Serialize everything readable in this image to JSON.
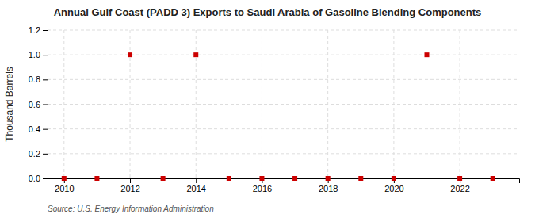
{
  "chart_data": {
    "type": "scatter",
    "title": "Annual Gulf Coast (PADD 3) Exports to Saudi Arabia of Gasoline Blending Components",
    "ylabel": "Thousand Barrels",
    "source": "Source: U.S. Energy Information Administration",
    "x": [
      2010,
      2011,
      2012,
      2013,
      2014,
      2015,
      2016,
      2017,
      2018,
      2019,
      2020,
      2021,
      2022,
      2023
    ],
    "values": [
      0,
      0,
      1,
      0,
      1,
      0,
      0,
      0,
      0,
      0,
      0,
      1,
      0,
      0
    ],
    "color": "#cc0000",
    "marker": "square",
    "xlim": [
      2009.5,
      2023.8
    ],
    "xticks": [
      2010,
      2012,
      2014,
      2016,
      2018,
      2020,
      2022
    ],
    "ylim": [
      0,
      1.2
    ],
    "yticks": [
      {
        "value": 0.0,
        "label": "0.0"
      },
      {
        "value": 0.2,
        "label": "0.2"
      },
      {
        "value": 0.4,
        "label": "0.4"
      },
      {
        "value": 0.6,
        "label": "0.6"
      },
      {
        "value": 0.8,
        "label": "0.8"
      },
      {
        "value": 1.0,
        "label": "1.0"
      },
      {
        "value": 1.2,
        "label": "1.2"
      }
    ],
    "grid": true
  }
}
